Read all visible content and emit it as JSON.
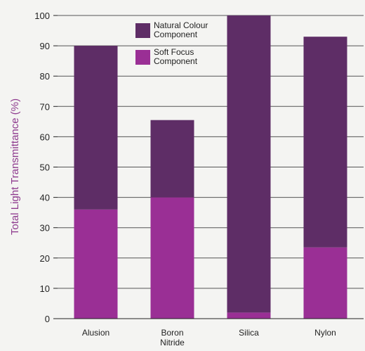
{
  "chart_data": {
    "type": "bar",
    "stacked": true,
    "categories": [
      [
        "Alusion"
      ],
      [
        "Boron",
        "Nitride"
      ],
      [
        "Silica"
      ],
      [
        "Nylon"
      ]
    ],
    "series": [
      {
        "name": [
          "Soft Focus",
          "Component"
        ],
        "values": [
          36,
          40,
          2,
          23.5
        ],
        "color": "#9a2f95"
      },
      {
        "name": [
          "Natural Colour",
          "Component"
        ],
        "values": [
          54,
          25.5,
          98,
          69.5
        ],
        "color": "#5e2d66"
      }
    ],
    "xlabel": "",
    "ylabel": "Total Light Transmittance (%)",
    "ylim": [
      0,
      100
    ],
    "yticks": [
      0,
      10,
      20,
      30,
      40,
      50,
      60,
      70,
      80,
      90,
      100
    ],
    "grid": true,
    "legend_position": "top-center",
    "colors": {
      "ylabel": "#8e3a8e",
      "axis": "#222222",
      "grid": "#555555"
    }
  }
}
